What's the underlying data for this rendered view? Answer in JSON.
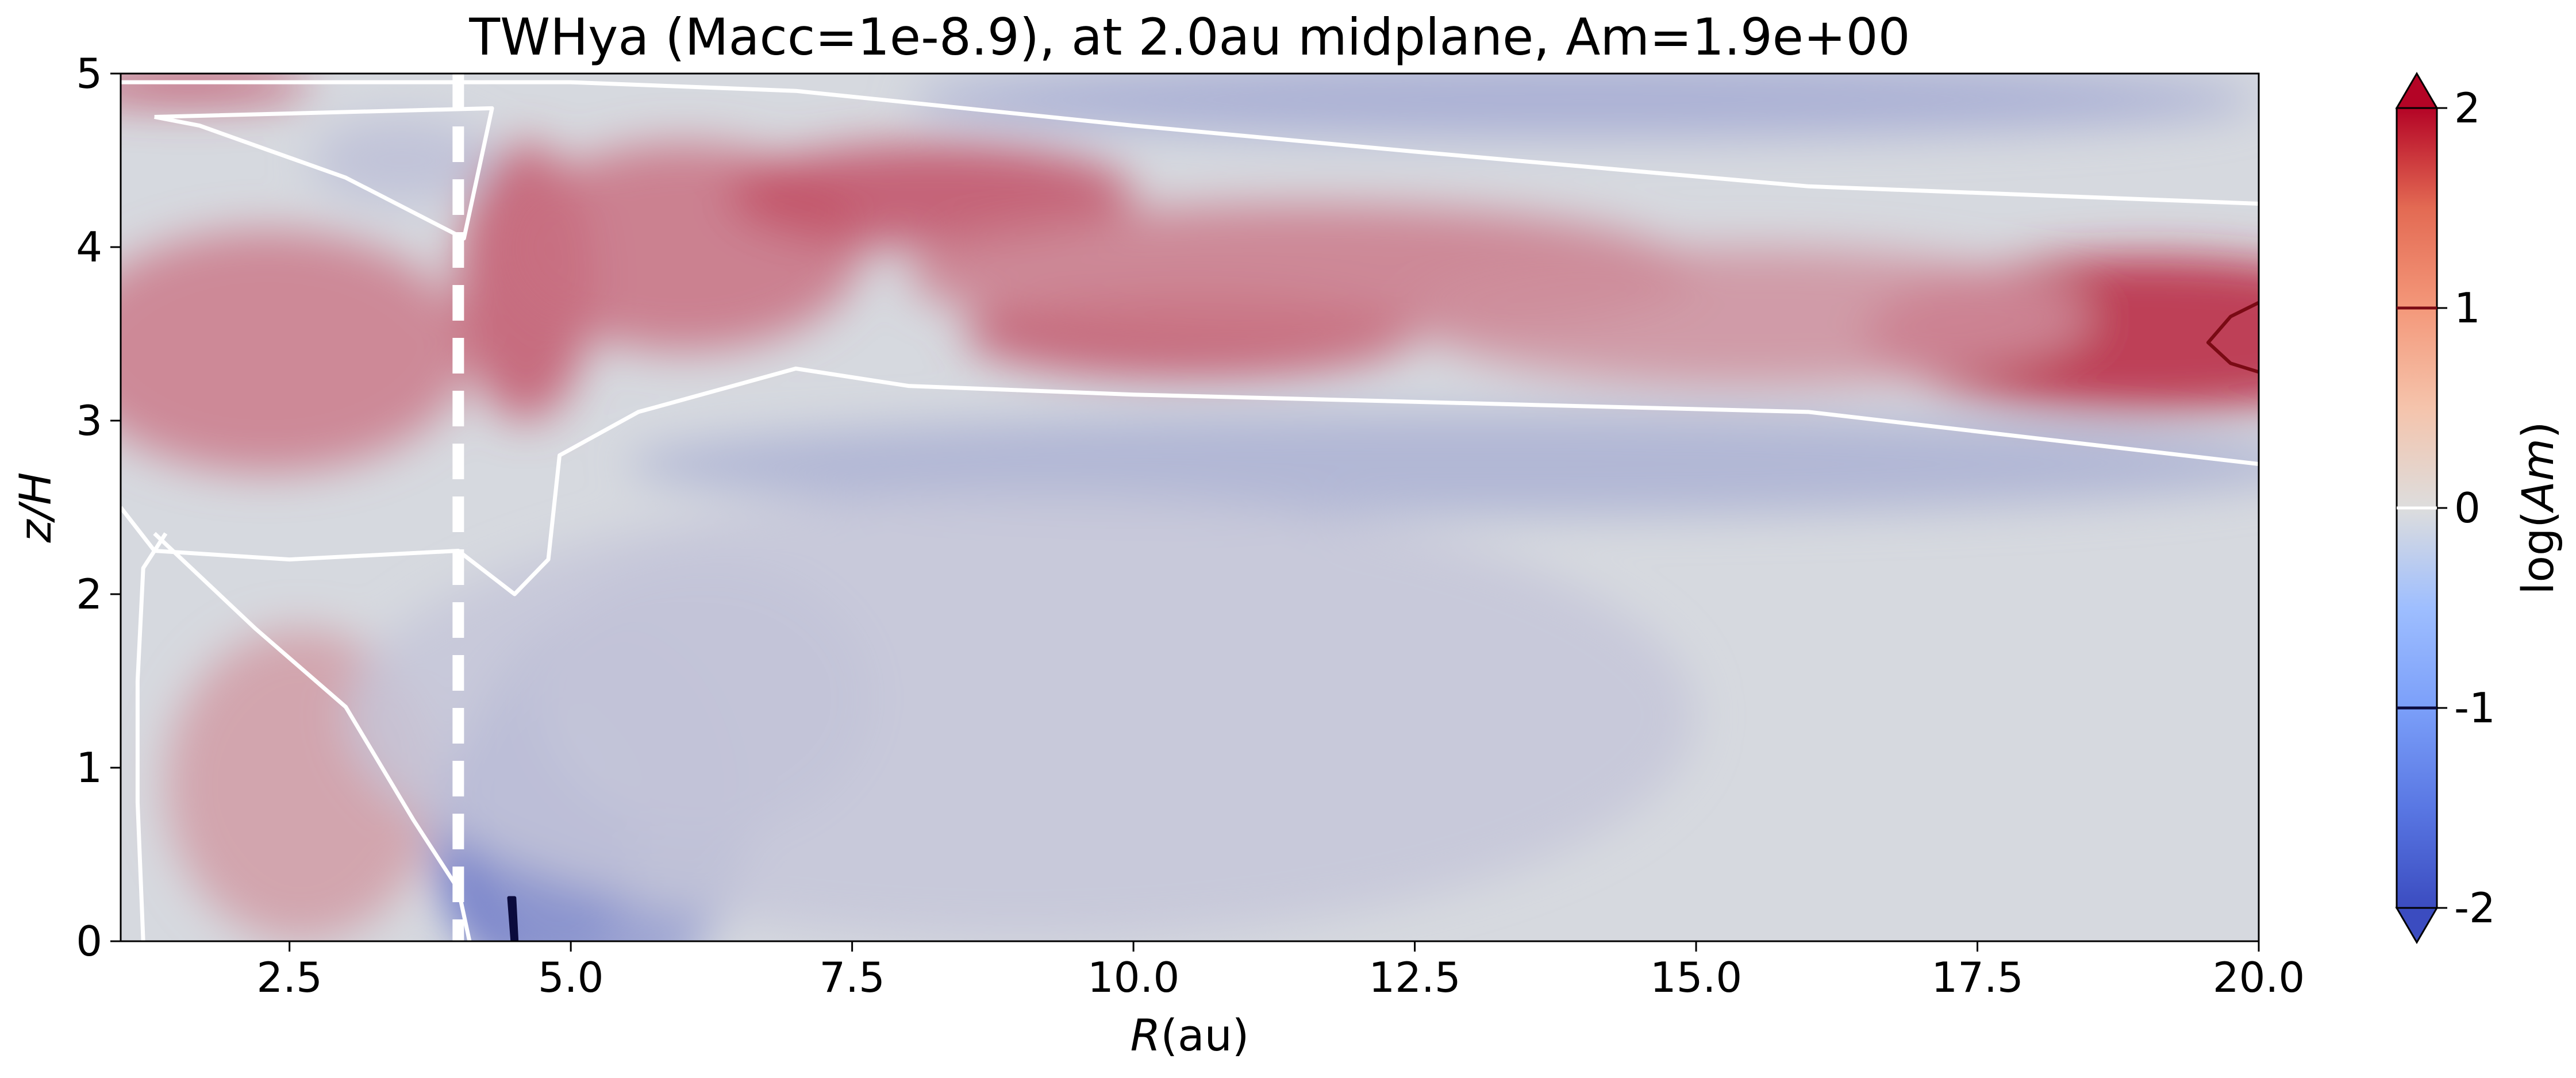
{
  "chart_data": {
    "type": "contour",
    "title": "TWHya (Macc=1e-8.9), at 2.0au midplane, Am=1.9e+00",
    "xlabel_var": "R",
    "xlabel_unit": "(au)",
    "ylabel": "z/H",
    "xlim": [
      1.0,
      20.0
    ],
    "ylim": [
      0,
      5
    ],
    "x_ticks": [
      2.5,
      5.0,
      7.5,
      10.0,
      12.5,
      15.0,
      17.5,
      20.0
    ],
    "x_tick_labels": [
      "2.5",
      "5.0",
      "7.5",
      "10.0",
      "12.5",
      "15.0",
      "17.5",
      "20.0"
    ],
    "y_ticks": [
      0,
      1,
      2,
      3,
      4,
      5
    ],
    "y_tick_labels": [
      "0",
      "1",
      "2",
      "3",
      "4",
      "5"
    ],
    "colormap": "coolwarm",
    "colors": {
      "low": "#3b4cc0",
      "mid": "#dddddd",
      "high": "#b40426"
    },
    "colorbar": {
      "label_prefix": "log(",
      "label_var": "Am",
      "label_suffix": ")",
      "range": [
        -2,
        2
      ],
      "ticks": [
        2,
        1,
        0,
        -1,
        -2
      ],
      "tick_labels": [
        "2",
        "1",
        "0",
        "-1",
        "-2"
      ],
      "extend": "both"
    },
    "dashed_line": {
      "x": 4.0,
      "color": "#ffffff"
    },
    "contour_levels": [
      -1,
      0,
      1
    ],
    "contours": [
      {
        "level": 0,
        "color": "#ffffff",
        "points": [
          [
            1.0,
            4.95
          ],
          [
            3.0,
            4.95
          ],
          [
            5.0,
            4.95
          ],
          [
            7.0,
            4.9
          ],
          [
            10.0,
            4.7
          ],
          [
            12.5,
            4.55
          ],
          [
            16.0,
            4.35
          ],
          [
            20.0,
            4.25
          ]
        ]
      },
      {
        "level": 0,
        "color": "#ffffff",
        "points": [
          [
            1.3,
            4.75
          ],
          [
            4.3,
            4.8
          ],
          [
            4.05,
            4.05
          ],
          [
            3.0,
            4.4
          ],
          [
            1.7,
            4.7
          ],
          [
            1.3,
            4.75
          ]
        ]
      },
      {
        "level": 0,
        "color": "#ffffff",
        "points": [
          [
            1.0,
            2.5
          ],
          [
            1.3,
            2.25
          ],
          [
            2.5,
            2.2
          ],
          [
            4.0,
            2.25
          ],
          [
            4.5,
            2.0
          ],
          [
            4.8,
            2.2
          ],
          [
            4.9,
            2.8
          ],
          [
            5.6,
            3.05
          ],
          [
            7.0,
            3.3
          ],
          [
            8.0,
            3.2
          ],
          [
            10.0,
            3.15
          ],
          [
            13.0,
            3.1
          ],
          [
            16.0,
            3.05
          ],
          [
            18.0,
            2.9
          ],
          [
            20.0,
            2.75
          ]
        ]
      },
      {
        "level": 0,
        "color": "#ffffff",
        "points": [
          [
            1.4,
            2.35
          ],
          [
            1.2,
            2.15
          ],
          [
            1.15,
            1.5
          ],
          [
            1.15,
            0.8
          ],
          [
            1.2,
            0.0
          ]
        ]
      },
      {
        "level": 0,
        "color": "#ffffff",
        "points": [
          [
            1.3,
            2.35
          ],
          [
            2.2,
            1.8
          ],
          [
            3.0,
            1.35
          ],
          [
            3.6,
            0.7
          ],
          [
            4.0,
            0.3
          ],
          [
            4.1,
            0.0
          ]
        ]
      },
      {
        "level": 1,
        "color": "#7a0a14",
        "points": [
          [
            20.0,
            3.68
          ],
          [
            19.75,
            3.6
          ],
          [
            19.55,
            3.45
          ],
          [
            19.75,
            3.33
          ],
          [
            20.0,
            3.28
          ]
        ]
      },
      {
        "level": -1,
        "color": "#0b0b3d",
        "points": [
          [
            4.48,
            0.0
          ],
          [
            4.45,
            0.25
          ],
          [
            4.5,
            0.25
          ],
          [
            4.52,
            0.0
          ]
        ]
      }
    ],
    "field_blobs": [
      {
        "x": 1.6,
        "y": 4.93,
        "rx": 1.1,
        "ry": 0.1,
        "v": 0.7
      },
      {
        "x": 2.3,
        "y": 3.4,
        "rx": 1.8,
        "ry": 0.7,
        "v": 0.45
      },
      {
        "x": 2.6,
        "y": 0.9,
        "rx": 1.2,
        "ry": 0.9,
        "v": 0.3
      },
      {
        "x": 4.6,
        "y": 3.8,
        "rx": 0.6,
        "ry": 0.8,
        "v": 0.6
      },
      {
        "x": 6.0,
        "y": 4.0,
        "rx": 1.6,
        "ry": 0.6,
        "v": 0.5
      },
      {
        "x": 8.2,
        "y": 4.3,
        "rx": 1.8,
        "ry": 0.3,
        "v": 0.65
      },
      {
        "x": 10.5,
        "y": 3.5,
        "rx": 2.0,
        "ry": 0.25,
        "v": 0.65
      },
      {
        "x": 11.5,
        "y": 3.85,
        "rx": 3.5,
        "ry": 0.4,
        "v": 0.45
      },
      {
        "x": 19.0,
        "y": 3.5,
        "rx": 2.5,
        "ry": 0.45,
        "v": 0.85
      },
      {
        "x": 15.5,
        "y": 3.6,
        "rx": 3.0,
        "ry": 0.4,
        "v": 0.35
      },
      {
        "x": 3.5,
        "y": 4.5,
        "rx": 0.8,
        "ry": 0.25,
        "v": -0.2
      },
      {
        "x": 4.7,
        "y": 0.6,
        "rx": 0.9,
        "ry": 0.8,
        "v": -0.9
      },
      {
        "x": 5.3,
        "y": 0.8,
        "rx": 1.3,
        "ry": 1.1,
        "v": -0.45
      },
      {
        "x": 6.2,
        "y": 1.4,
        "rx": 1.5,
        "ry": 0.8,
        "v": -0.25
      },
      {
        "x": 13.0,
        "y": 2.75,
        "rx": 7.5,
        "ry": 0.3,
        "v": -0.3
      },
      {
        "x": 14.0,
        "y": 4.85,
        "rx": 6.0,
        "ry": 0.22,
        "v": -0.35
      },
      {
        "x": 9.0,
        "y": 1.3,
        "rx": 6.0,
        "ry": 1.3,
        "v": -0.15
      }
    ]
  }
}
